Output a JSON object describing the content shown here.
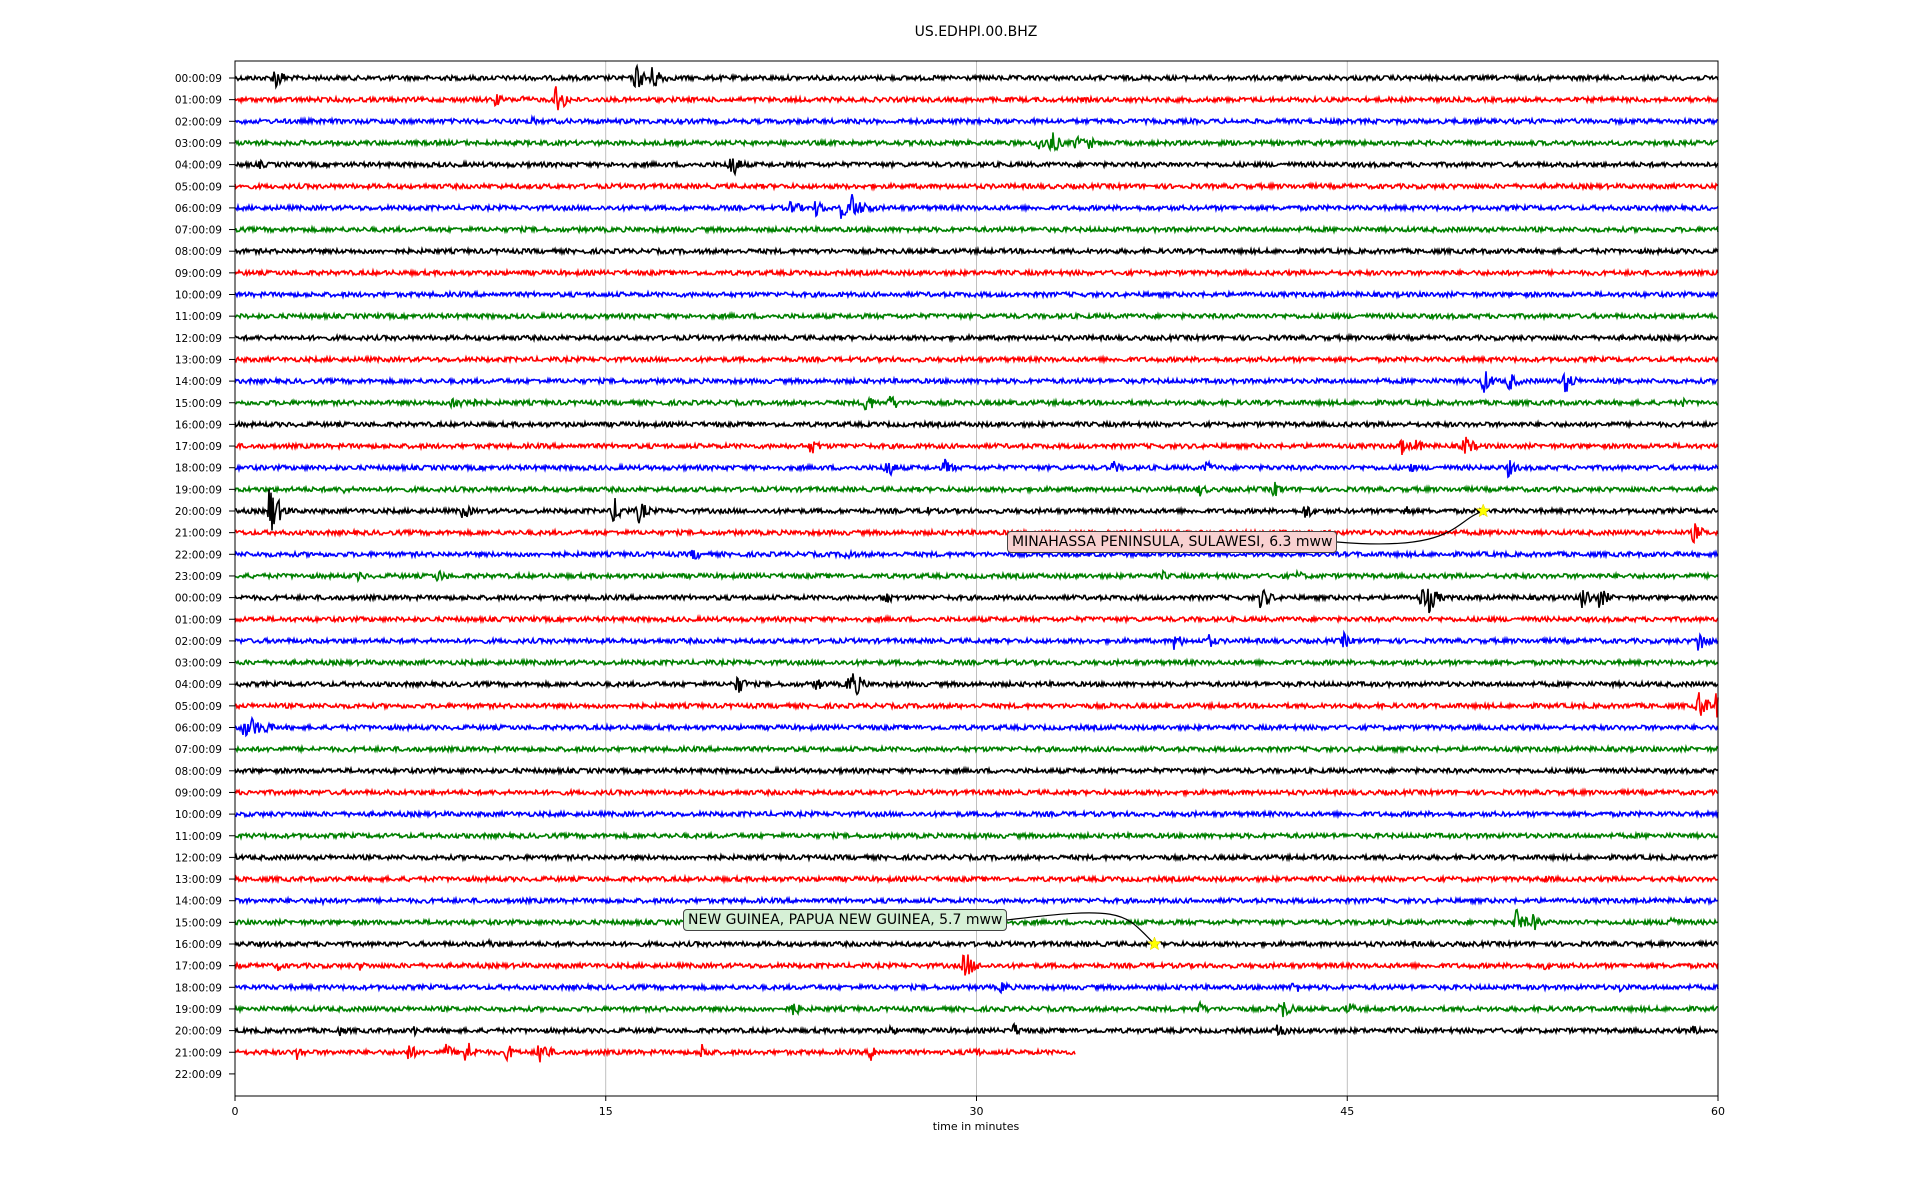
{
  "chart_data": {
    "type": "line",
    "title": "US.EDHPI.00.BHZ",
    "xlabel": "time in minutes",
    "ylabel": "",
    "xlim": [
      0,
      60
    ],
    "xticks": [
      0,
      15,
      30,
      45,
      60
    ],
    "grid_x": true,
    "trace_colors": [
      "#000000",
      "#ff0000",
      "#0000ff",
      "#008000"
    ],
    "rows": [
      {
        "label": "00:00:09",
        "events": [
          [
            1.6,
            14
          ],
          [
            16.2,
            16
          ],
          [
            16.8,
            14
          ],
          [
            17.0,
            12
          ]
        ]
      },
      {
        "label": "01:00:09",
        "events": [
          [
            10.5,
            8
          ],
          [
            11.5,
            6
          ],
          [
            13.0,
            18
          ]
        ]
      },
      {
        "label": "02:00:09",
        "events": [
          [
            12.0,
            5
          ]
        ]
      },
      {
        "label": "03:00:09",
        "events": [
          [
            32.5,
            10
          ],
          [
            33.0,
            14
          ],
          [
            34.0,
            10
          ],
          [
            34.5,
            8
          ]
        ]
      },
      {
        "label": "04:00:09",
        "events": [
          [
            1.0,
            5
          ],
          [
            20.0,
            18
          ]
        ]
      },
      {
        "label": "05:00:09",
        "events": []
      },
      {
        "label": "06:00:09",
        "events": [
          [
            22.5,
            10
          ],
          [
            23.5,
            10
          ],
          [
            24.5,
            12
          ],
          [
            24.9,
            18
          ],
          [
            25.5,
            8
          ]
        ]
      },
      {
        "label": "07:00:09",
        "events": []
      },
      {
        "label": "08:00:09",
        "events": []
      },
      {
        "label": "09:00:09",
        "events": []
      },
      {
        "label": "10:00:09",
        "events": []
      },
      {
        "label": "11:00:09",
        "events": []
      },
      {
        "label": "12:00:09",
        "events": []
      },
      {
        "label": "13:00:09",
        "events": []
      },
      {
        "label": "14:00:09",
        "events": [
          [
            50.5,
            14
          ],
          [
            51.5,
            12
          ],
          [
            53.8,
            14
          ]
        ]
      },
      {
        "label": "15:00:09",
        "events": [
          [
            8.8,
            10
          ],
          [
            9.3,
            12
          ],
          [
            25.5,
            12
          ],
          [
            26.5,
            10
          ],
          [
            58.5,
            6
          ]
        ]
      },
      {
        "label": "16:00:09",
        "events": []
      },
      {
        "label": "17:00:09",
        "events": [
          [
            23.3,
            10
          ],
          [
            47.2,
            10
          ],
          [
            47.8,
            8
          ],
          [
            49.7,
            14
          ]
        ]
      },
      {
        "label": "18:00:09",
        "events": [
          [
            26.3,
            14
          ],
          [
            28.7,
            10
          ],
          [
            35.5,
            8
          ],
          [
            39.3,
            8
          ],
          [
            47.5,
            6
          ],
          [
            51.5,
            10
          ]
        ]
      },
      {
        "label": "19:00:09",
        "events": [
          [
            4.3,
            6
          ],
          [
            39.0,
            8
          ],
          [
            42.0,
            10
          ]
        ]
      },
      {
        "label": "20:00:09",
        "events": [
          [
            1.4,
            30
          ],
          [
            9.2,
            10
          ],
          [
            15.3,
            16
          ],
          [
            16.3,
            14
          ],
          [
            27.8,
            8
          ],
          [
            43.3,
            10
          ],
          [
            47.3,
            8
          ]
        ]
      },
      {
        "label": "21:00:09",
        "events": [
          [
            51.0,
            6
          ],
          [
            59.0,
            12
          ]
        ]
      },
      {
        "label": "22:00:09",
        "events": [
          [
            18.5,
            8
          ],
          [
            24.7,
            8
          ]
        ]
      },
      {
        "label": "23:00:09",
        "events": [
          [
            5.0,
            6
          ],
          [
            8.2,
            8
          ],
          [
            37.5,
            6
          ],
          [
            43.0,
            6
          ]
        ]
      },
      {
        "label": "00:00:09",
        "events": [
          [
            26.2,
            10
          ],
          [
            41.5,
            14
          ],
          [
            48.0,
            14
          ],
          [
            48.3,
            16
          ],
          [
            54.5,
            14
          ],
          [
            55.2,
            12
          ]
        ]
      },
      {
        "label": "01:00:09",
        "events": []
      },
      {
        "label": "02:00:09",
        "events": [
          [
            38.0,
            10
          ],
          [
            39.3,
            10
          ],
          [
            44.8,
            10
          ],
          [
            59.2,
            14
          ]
        ]
      },
      {
        "label": "03:00:09",
        "events": []
      },
      {
        "label": "04:00:09",
        "events": [
          [
            20.3,
            12
          ],
          [
            23.5,
            8
          ],
          [
            24.8,
            12
          ],
          [
            25.0,
            16
          ]
        ]
      },
      {
        "label": "05:00:09",
        "events": [
          [
            59.2,
            18
          ],
          [
            59.9,
            16
          ]
        ]
      },
      {
        "label": "06:00:09",
        "events": [
          [
            0.3,
            14
          ],
          [
            0.7,
            12
          ],
          [
            1.2,
            8
          ]
        ]
      },
      {
        "label": "07:00:09",
        "events": []
      },
      {
        "label": "08:00:09",
        "events": []
      },
      {
        "label": "09:00:09",
        "events": []
      },
      {
        "label": "10:00:09",
        "events": []
      },
      {
        "label": "11:00:09",
        "events": []
      },
      {
        "label": "12:00:09",
        "events": []
      },
      {
        "label": "13:00:09",
        "events": [
          [
            53.0,
            5
          ]
        ]
      },
      {
        "label": "14:00:09",
        "events": [
          [
            3.5,
            6
          ]
        ]
      },
      {
        "label": "15:00:09",
        "events": [
          [
            51.8,
            16
          ],
          [
            52.5,
            10
          ],
          [
            58.0,
            12
          ]
        ]
      },
      {
        "label": "16:00:09",
        "events": [
          [
            10.2,
            6
          ]
        ]
      },
      {
        "label": "17:00:09",
        "events": [
          [
            1.7,
            6
          ],
          [
            5.0,
            6
          ],
          [
            29.5,
            18
          ],
          [
            53.0,
            6
          ]
        ]
      },
      {
        "label": "18:00:09",
        "events": [
          [
            31.0,
            8
          ],
          [
            42.8,
            8
          ],
          [
            56.0,
            6
          ]
        ]
      },
      {
        "label": "19:00:09",
        "events": [
          [
            22.5,
            10
          ],
          [
            39.0,
            8
          ],
          [
            42.3,
            14
          ],
          [
            45.0,
            8
          ]
        ]
      },
      {
        "label": "20:00:09",
        "events": [
          [
            4.2,
            6
          ],
          [
            7.2,
            6
          ],
          [
            26.5,
            6
          ],
          [
            31.5,
            8
          ],
          [
            42.2,
            10
          ],
          [
            59.0,
            6
          ]
        ]
      },
      {
        "label": "21:00:09",
        "end": 34,
        "events": [
          [
            2.5,
            8
          ],
          [
            7.0,
            10
          ],
          [
            8.5,
            10
          ],
          [
            9.3,
            16
          ],
          [
            11.0,
            10
          ],
          [
            12.3,
            16
          ],
          [
            18.9,
            10
          ],
          [
            25.7,
            10
          ],
          [
            29.8,
            8
          ]
        ]
      },
      {
        "label": "22:00:09",
        "end": 0,
        "events": []
      }
    ],
    "annotations": [
      {
        "text": "MINAHASSA PENINSULA, SULAWESI, 6.3 mww",
        "row": 20,
        "x": 50.5
      },
      {
        "text": "NEW GUINEA, PAPUA NEW GUINEA, 5.7 mww",
        "row": 40,
        "x": 37.2
      }
    ]
  }
}
